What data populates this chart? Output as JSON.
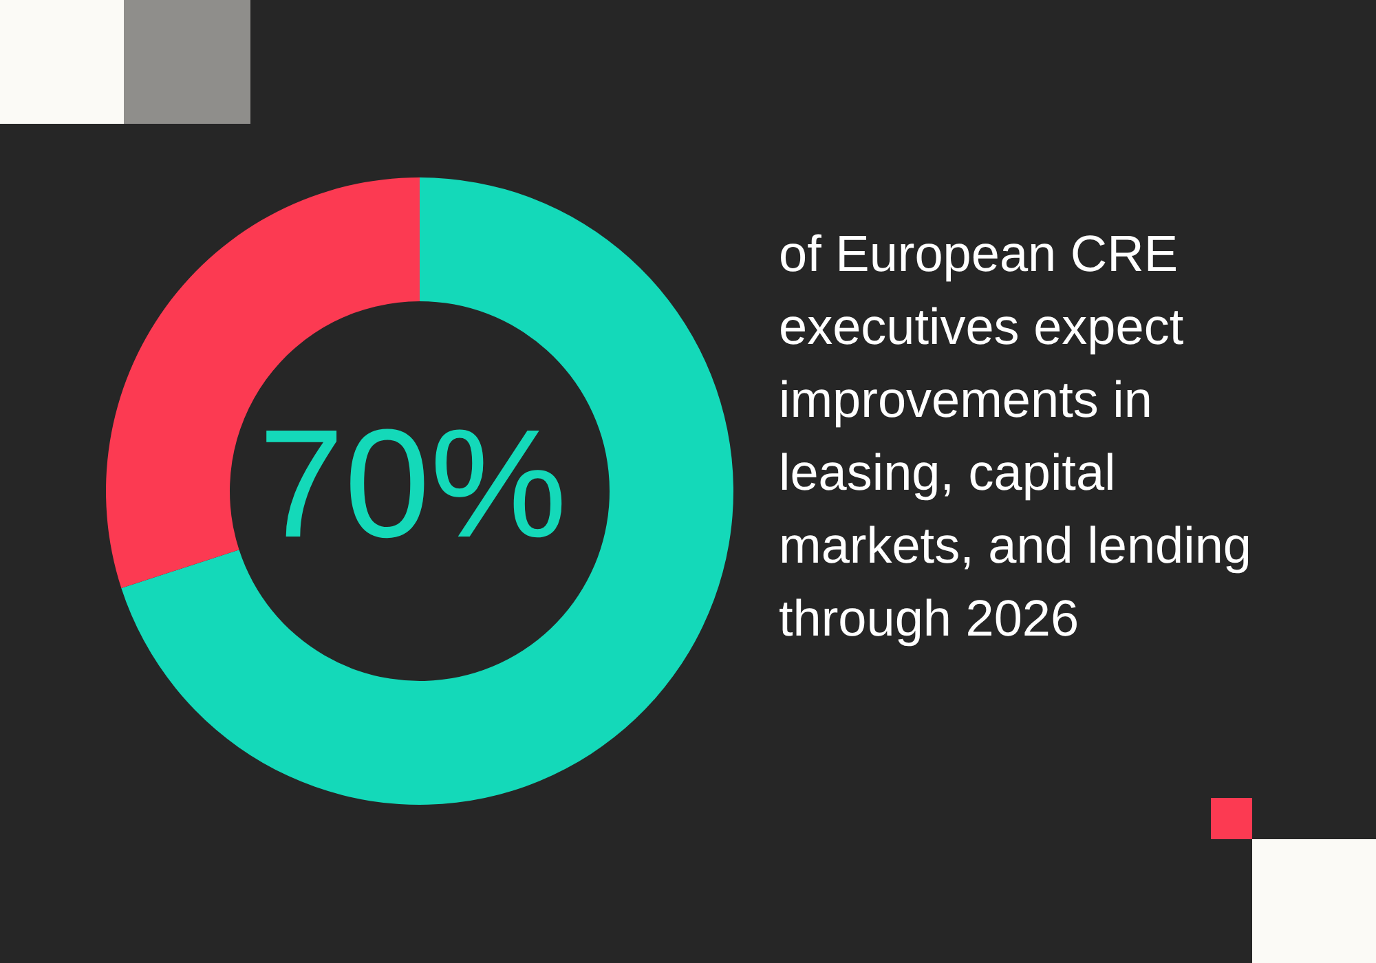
{
  "chart_data": {
    "type": "donut",
    "title": "of European CRE executives expect improvements in leasing, capital markets, and lending through 2026",
    "categories": [
      null,
      null
    ],
    "values": [
      70,
      30
    ],
    "colors": [
      "#14d9b9",
      "#fc3a52"
    ],
    "annotations": [
      "70%"
    ]
  }
}
